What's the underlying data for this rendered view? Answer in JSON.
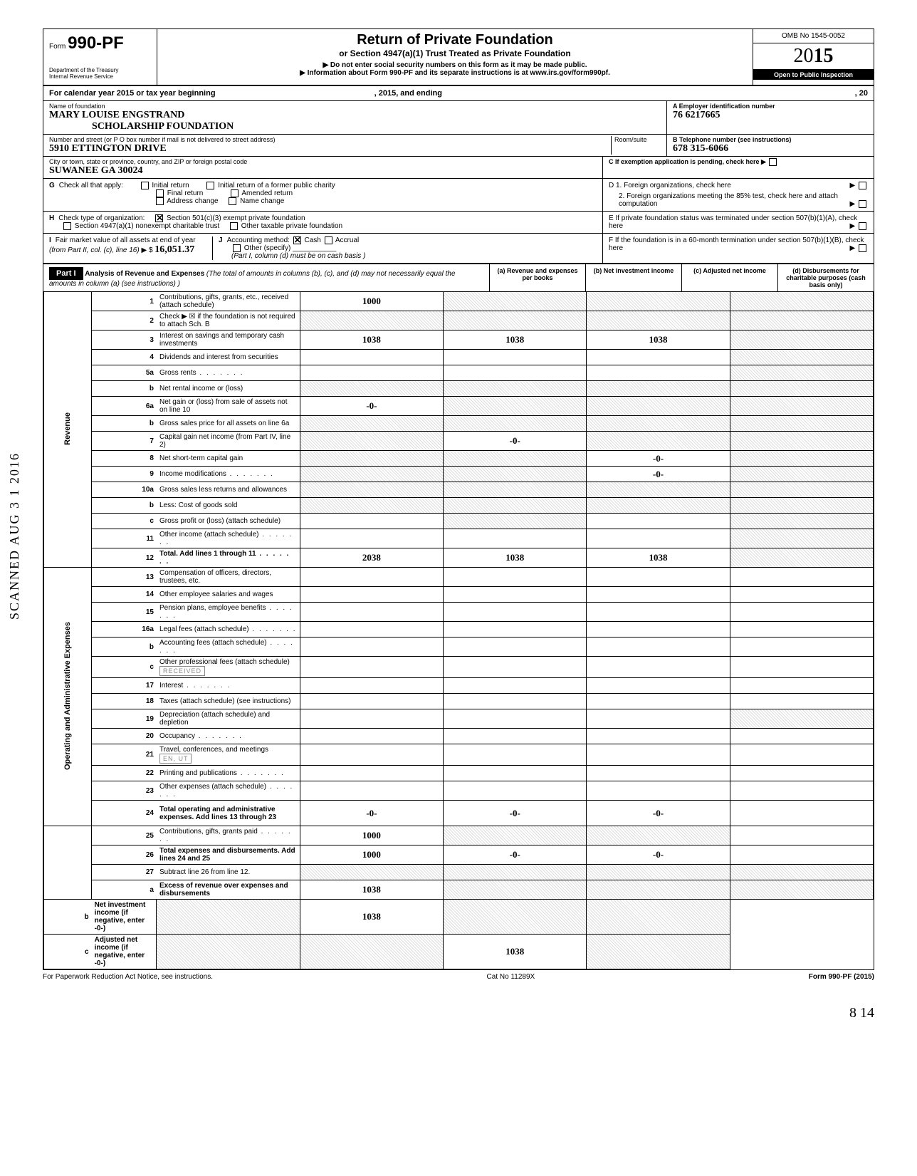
{
  "vertical_stamp": "SCANNED AUG 3 1 2016",
  "header": {
    "form_label": "Form",
    "form_number": "990-PF",
    "dept1": "Department of the Treasury",
    "dept2": "Internal Revenue Service",
    "title": "Return of Private Foundation",
    "subtitle": "or Section 4947(a)(1) Trust Treated as Private Foundation",
    "instr1": "▶ Do not enter social security numbers on this form as it may be made public.",
    "instr2": "▶ Information about Form 990-PF and its separate instructions is at www.irs.gov/form990pf.",
    "omb": "OMB No 1545-0052",
    "year_prefix": "20",
    "year_bold": "15",
    "inspection": "Open to Public Inspection"
  },
  "calyear": "For calendar year 2015 or tax year beginning",
  "calyear_mid": ", 2015, and ending",
  "calyear_end": ", 20",
  "name": {
    "label": "Name of foundation",
    "value1": "MARY LOUISE ENGSTRAND",
    "value2": "SCHOLARSHIP FOUNDATION"
  },
  "ein": {
    "label": "A  Employer identification number",
    "value": "76 6217665"
  },
  "address": {
    "label": "Number and street (or P O box number if mail is not delivered to street address)",
    "value": "5910 ETTINGTON DRIVE",
    "room_label": "Room/suite"
  },
  "phone": {
    "label": "B  Telephone number (see instructions)",
    "value": "678 315-6066"
  },
  "city": {
    "label": "City or town, state or province, country, and ZIP or foreign postal code",
    "value": "SUWANEE    GA    30024"
  },
  "boxC": "C  If exemption application is pending, check here ▶",
  "boxG": {
    "label": "G  Check all that apply:",
    "opts": [
      "Initial return",
      "Initial return of a former public charity",
      "Final return",
      "Amended return",
      "Address change",
      "Name change"
    ]
  },
  "boxD": {
    "d1": "D  1. Foreign organizations, check here",
    "d2": "2. Foreign organizations meeting the 85% test, check here and attach computation"
  },
  "boxH": {
    "label": "H  Check type of organization:",
    "opt1": "Section 501(c)(3) exempt private foundation",
    "opt2": "Section 4947(a)(1) nonexempt charitable trust",
    "opt3": "Other taxable private foundation"
  },
  "boxE": "E  If private foundation status was terminated under section 507(b)(1)(A), check here",
  "boxI": {
    "label": "I   Fair market value of all assets at end of year (from Part II, col. (c), line 16) ▶ $",
    "value": "16,051.37"
  },
  "boxJ": {
    "label": "J  Accounting method:",
    "cash": "Cash",
    "accrual": "Accrual",
    "other": "Other (specify)",
    "note": "(Part I, column (d) must be on cash basis )"
  },
  "boxF": "F  If the foundation is in a 60-month termination under section 507(b)(1)(B), check here",
  "partI": {
    "tag": "Part I",
    "title": "Analysis of Revenue and Expenses",
    "note": "(The total of amounts in columns (b), (c), and (d) may not necessarily equal the amounts in column (a) (see instructions) )",
    "colA": "(a) Revenue and expenses per books",
    "colB": "(b) Net investment income",
    "colC": "(c) Adjusted net income",
    "colD": "(d) Disbursements for charitable purposes (cash basis only)"
  },
  "vert_labels": {
    "rev": "Revenue",
    "exp": "Operating and Administrative Expenses"
  },
  "lines": [
    {
      "n": "1",
      "d": "Contributions, gifts, grants, etc., received (attach schedule)",
      "a": "1000",
      "b": "shaded",
      "c": "shaded",
      "dd": "shaded"
    },
    {
      "n": "2",
      "d": "Check ▶ ☒ if the foundation is not required to attach Sch. B",
      "a": "shaded",
      "b": "shaded",
      "c": "shaded",
      "dd": "shaded"
    },
    {
      "n": "3",
      "d": "Interest on savings and temporary cash investments",
      "a": "1038",
      "b": "1038",
      "c": "1038",
      "dd": "shaded"
    },
    {
      "n": "4",
      "d": "Dividends and interest from securities",
      "a": "",
      "b": "",
      "c": "",
      "dd": "shaded"
    },
    {
      "n": "5a",
      "d": "Gross rents",
      "a": "",
      "b": "",
      "c": "",
      "dd": "shaded",
      "dots": true
    },
    {
      "n": "b",
      "d": "Net rental income or (loss)",
      "a": "shaded",
      "b": "shaded",
      "c": "shaded",
      "dd": "shaded"
    },
    {
      "n": "6a",
      "d": "Net gain or (loss) from sale of assets not on line 10",
      "a": "-0-",
      "b": "shaded",
      "c": "shaded",
      "dd": "shaded"
    },
    {
      "n": "b",
      "d": "Gross sales price for all assets on line 6a",
      "a": "shaded",
      "b": "shaded",
      "c": "shaded",
      "dd": "shaded"
    },
    {
      "n": "7",
      "d": "Capital gain net income (from Part IV, line 2)",
      "a": "shaded",
      "b": "-0-",
      "c": "shaded",
      "dd": "shaded"
    },
    {
      "n": "8",
      "d": "Net short-term capital gain",
      "a": "shaded",
      "b": "shaded",
      "c": "-0-",
      "dd": "shaded"
    },
    {
      "n": "9",
      "d": "Income modifications",
      "a": "shaded",
      "b": "shaded",
      "c": "-0-",
      "dd": "shaded",
      "dots": true
    },
    {
      "n": "10a",
      "d": "Gross sales less returns and allowances",
      "a": "shaded",
      "b": "shaded",
      "c": "shaded",
      "dd": "shaded"
    },
    {
      "n": "b",
      "d": "Less: Cost of goods sold",
      "a": "shaded",
      "b": "shaded",
      "c": "shaded",
      "dd": "shaded"
    },
    {
      "n": "c",
      "d": "Gross profit or (loss) (attach schedule)",
      "a": "",
      "b": "shaded",
      "c": "",
      "dd": "shaded"
    },
    {
      "n": "11",
      "d": "Other income (attach schedule)",
      "a": "",
      "b": "",
      "c": "",
      "dd": "shaded",
      "dots": true
    },
    {
      "n": "12",
      "d": "Total. Add lines 1 through 11",
      "a": "2038",
      "b": "1038",
      "c": "1038",
      "dd": "shaded",
      "bold": true,
      "dots": true
    },
    {
      "n": "13",
      "d": "Compensation of officers, directors, trustees, etc.",
      "a": "",
      "b": "",
      "c": "",
      "dd": ""
    },
    {
      "n": "14",
      "d": "Other employee salaries and wages",
      "a": "",
      "b": "",
      "c": "",
      "dd": ""
    },
    {
      "n": "15",
      "d": "Pension plans, employee benefits",
      "a": "",
      "b": "",
      "c": "",
      "dd": "",
      "dots": true
    },
    {
      "n": "16a",
      "d": "Legal fees (attach schedule)",
      "a": "",
      "b": "",
      "c": "",
      "dd": "",
      "dots": true
    },
    {
      "n": "b",
      "d": "Accounting fees (attach schedule)",
      "a": "",
      "b": "",
      "c": "",
      "dd": "",
      "dots": true
    },
    {
      "n": "c",
      "d": "Other professional fees (attach schedule)",
      "a": "",
      "b": "",
      "c": "",
      "dd": "",
      "stamp": "RECEIVED"
    },
    {
      "n": "17",
      "d": "Interest",
      "a": "",
      "b": "",
      "c": "",
      "dd": "",
      "dots": true
    },
    {
      "n": "18",
      "d": "Taxes (attach schedule) (see instructions)",
      "a": "",
      "b": "",
      "c": "",
      "dd": ""
    },
    {
      "n": "19",
      "d": "Depreciation (attach schedule) and depletion",
      "a": "",
      "b": "",
      "c": "",
      "dd": "shaded"
    },
    {
      "n": "20",
      "d": "Occupancy",
      "a": "",
      "b": "",
      "c": "",
      "dd": "",
      "dots": true
    },
    {
      "n": "21",
      "d": "Travel, conferences, and meetings",
      "a": "",
      "b": "",
      "c": "",
      "dd": "",
      "stamp": "EN, UT"
    },
    {
      "n": "22",
      "d": "Printing and publications",
      "a": "",
      "b": "",
      "c": "",
      "dd": "",
      "dots": true
    },
    {
      "n": "23",
      "d": "Other expenses (attach schedule)",
      "a": "",
      "b": "",
      "c": "",
      "dd": "",
      "dots": true
    },
    {
      "n": "24",
      "d": "Total operating and administrative expenses. Add lines 13 through 23",
      "a": "-0-",
      "b": "-0-",
      "c": "-0-",
      "dd": "",
      "bold": true,
      "tall": true
    },
    {
      "n": "25",
      "d": "Contributions, gifts, grants paid",
      "a": "1000",
      "b": "shaded",
      "c": "shaded",
      "dd": "",
      "dots": true
    },
    {
      "n": "26",
      "d": "Total expenses and disbursements. Add lines 24 and 25",
      "a": "1000",
      "b": "-0-",
      "c": "-0-",
      "dd": "",
      "bold": true
    },
    {
      "n": "27",
      "d": "Subtract line 26 from line 12.",
      "a": "shaded",
      "b": "shaded",
      "c": "shaded",
      "dd": "shaded"
    },
    {
      "n": "a",
      "d": "Excess of revenue over expenses and disbursements",
      "a": "1038",
      "b": "shaded",
      "c": "shaded",
      "dd": "shaded",
      "bold": true
    },
    {
      "n": "b",
      "d": "Net investment income (if negative, enter -0-)",
      "a": "shaded",
      "b": "1038",
      "c": "shaded",
      "dd": "shaded",
      "bold": true
    },
    {
      "n": "c",
      "d": "Adjusted net income (if negative, enter -0-)",
      "a": "shaded",
      "b": "shaded",
      "c": "1038",
      "dd": "shaded",
      "bold": true
    }
  ],
  "footer": {
    "left": "For Paperwork Reduction Act Notice, see instructions.",
    "mid": "Cat No 11289X",
    "right": "Form 990-PF (2015)"
  },
  "pagenum": "8    14"
}
